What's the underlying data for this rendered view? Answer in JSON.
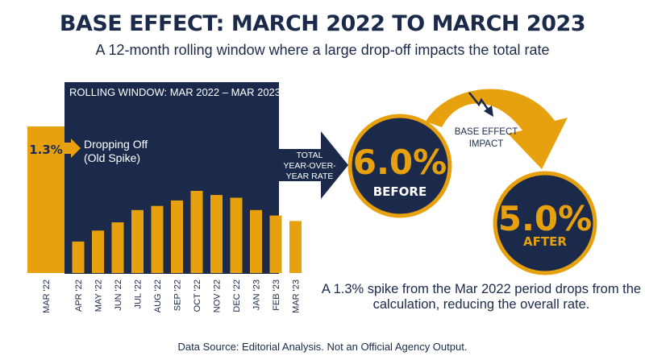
{
  "title": "BASE EFFECT: MARCH 2022 TO MARCH 2023",
  "subtitle": "A 12-month rolling window where a large drop-off impacts the total rate",
  "window_label": "ROLLING WINDOW: MAR 2022 – MAR 2023",
  "dropping": {
    "value_label": "1.3%",
    "line1": "Dropping Off",
    "line2": "(Old Spike)"
  },
  "arrow_label": [
    "TOTAL",
    "YEAR-OVER-",
    "YEAR RATE"
  ],
  "before": {
    "value": "6.0%",
    "label": "BEFORE"
  },
  "after": {
    "value": "5.0%",
    "label": "AFTER"
  },
  "impact_label": [
    "BASE EFFECT",
    "IMPACT"
  ],
  "note": "A 1.3% spike from the Mar 2022 period drops from the calculation, reducing the overall rate.",
  "source": "Data Source: Editorial Analysis. Not an Official Agency Output.",
  "colors": {
    "navy": "#1b2a4a",
    "gold": "#e8a10e",
    "white": "#ffffff"
  },
  "chart_data": {
    "type": "bar",
    "categories": [
      "MAR '22",
      "APR '22",
      "MAY '22",
      "JUN '22",
      "JUL '22",
      "AUG '22",
      "SEP '22",
      "OCT '22",
      "NOV '22",
      "DEC '22",
      "JAN '23",
      "FEB '23",
      "MAR '23"
    ],
    "values": [
      1.3,
      0.23,
      0.31,
      0.37,
      0.46,
      0.49,
      0.53,
      0.6,
      0.57,
      0.55,
      0.46,
      0.42,
      0.38
    ],
    "highlighted_category": "MAR '22",
    "ylim": [
      0,
      1.3
    ]
  }
}
